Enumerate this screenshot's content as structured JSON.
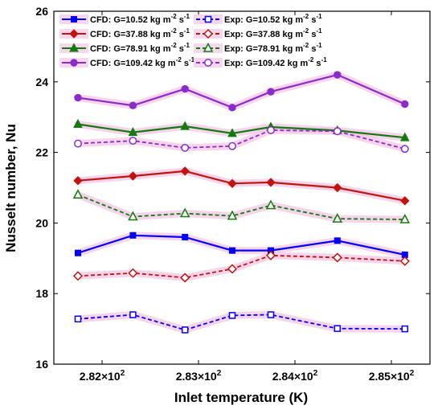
{
  "chart_data": {
    "type": "line",
    "title": "",
    "xlabel": "Inlet temperature (K)",
    "ylabel": "Nusselt number, Nu",
    "xlim": [
      281.5,
      285.4
    ],
    "ylim": [
      16,
      26
    ],
    "x_ticks": [
      282,
      283,
      284,
      285
    ],
    "x_tick_labels": [
      {
        "mantissa": "2.82",
        "times": "×10",
        "exp": "2"
      },
      {
        "mantissa": "2.83",
        "times": "×10",
        "exp": "2"
      },
      {
        "mantissa": "2.84",
        "times": "×10",
        "exp": "2"
      },
      {
        "mantissa": "2.85",
        "times": "×10",
        "exp": "2"
      }
    ],
    "y_ticks": [
      16,
      18,
      20,
      22,
      24,
      26
    ],
    "y_tick_labels": [
      "16",
      "18",
      "20",
      "22",
      "24",
      "26"
    ],
    "grid": false,
    "legend_position": "top-left",
    "x": [
      281.75,
      282.32,
      282.86,
      283.35,
      283.75,
      284.44,
      285.14
    ],
    "series": [
      {
        "name_prefix": "CFD: G=10.52 kg m",
        "name_sup": "-2",
        "name_suffix": " s",
        "name_sup2": "-1",
        "color": "#0000ff",
        "marker": "square",
        "dashed": false,
        "values": [
          19.15,
          19.65,
          19.6,
          19.22,
          19.22,
          19.5,
          19.1
        ]
      },
      {
        "name_prefix": "CFD: G=37.88 kg m",
        "name_sup": "-2",
        "name_suffix": " s",
        "name_sup2": "-1",
        "color": "#c0150f",
        "marker": "diamond",
        "dashed": false,
        "values": [
          21.2,
          21.33,
          21.47,
          21.12,
          21.15,
          21.0,
          20.63
        ]
      },
      {
        "name_prefix": "CFD: G=78.91 kg m",
        "name_sup": "-2",
        "name_suffix": " s",
        "name_sup2": "-1",
        "color": "#137a0e",
        "marker": "triangle",
        "dashed": false,
        "values": [
          22.8,
          22.57,
          22.74,
          22.54,
          22.72,
          22.62,
          22.42
        ]
      },
      {
        "name_prefix": "CFD: G=109.42 kg m",
        "name_sup": "-2",
        "name_suffix": " s",
        "name_sup2": "-1",
        "color": "#8a2cc9",
        "marker": "circle",
        "dashed": false,
        "values": [
          23.55,
          23.33,
          23.8,
          23.27,
          23.72,
          24.2,
          23.37
        ]
      },
      {
        "name_prefix": "Exp: G=10.52 kg m",
        "name_sup": "-2",
        "name_suffix": " s",
        "name_sup2": "-1",
        "color": "#0000ff",
        "marker": "square",
        "dashed": true,
        "values": [
          17.28,
          17.4,
          16.97,
          17.38,
          17.4,
          17.01,
          17.0
        ]
      },
      {
        "name_prefix": "Exp: G=37.88 kg m",
        "name_sup": "-2",
        "name_suffix": " s",
        "name_sup2": "-1",
        "color": "#c0150f",
        "marker": "diamond",
        "dashed": true,
        "values": [
          18.5,
          18.58,
          18.45,
          18.7,
          19.08,
          19.02,
          18.92
        ]
      },
      {
        "name_prefix": "Exp: G=78.91 kg m",
        "name_sup": "-2",
        "name_suffix": " s",
        "name_sup2": "-1",
        "color": "#137a0e",
        "marker": "triangle",
        "dashed": true,
        "values": [
          20.8,
          20.18,
          20.27,
          20.2,
          20.5,
          20.12,
          20.1
        ]
      },
      {
        "name_prefix": "Exp: G=109.42 kg m",
        "name_sup": "-2",
        "name_suffix": " s",
        "name_sup2": "-1",
        "color": "#8a2cc9",
        "marker": "circle",
        "dashed": true,
        "values": [
          22.25,
          22.33,
          22.13,
          22.18,
          22.63,
          22.6,
          22.1
        ]
      }
    ]
  }
}
